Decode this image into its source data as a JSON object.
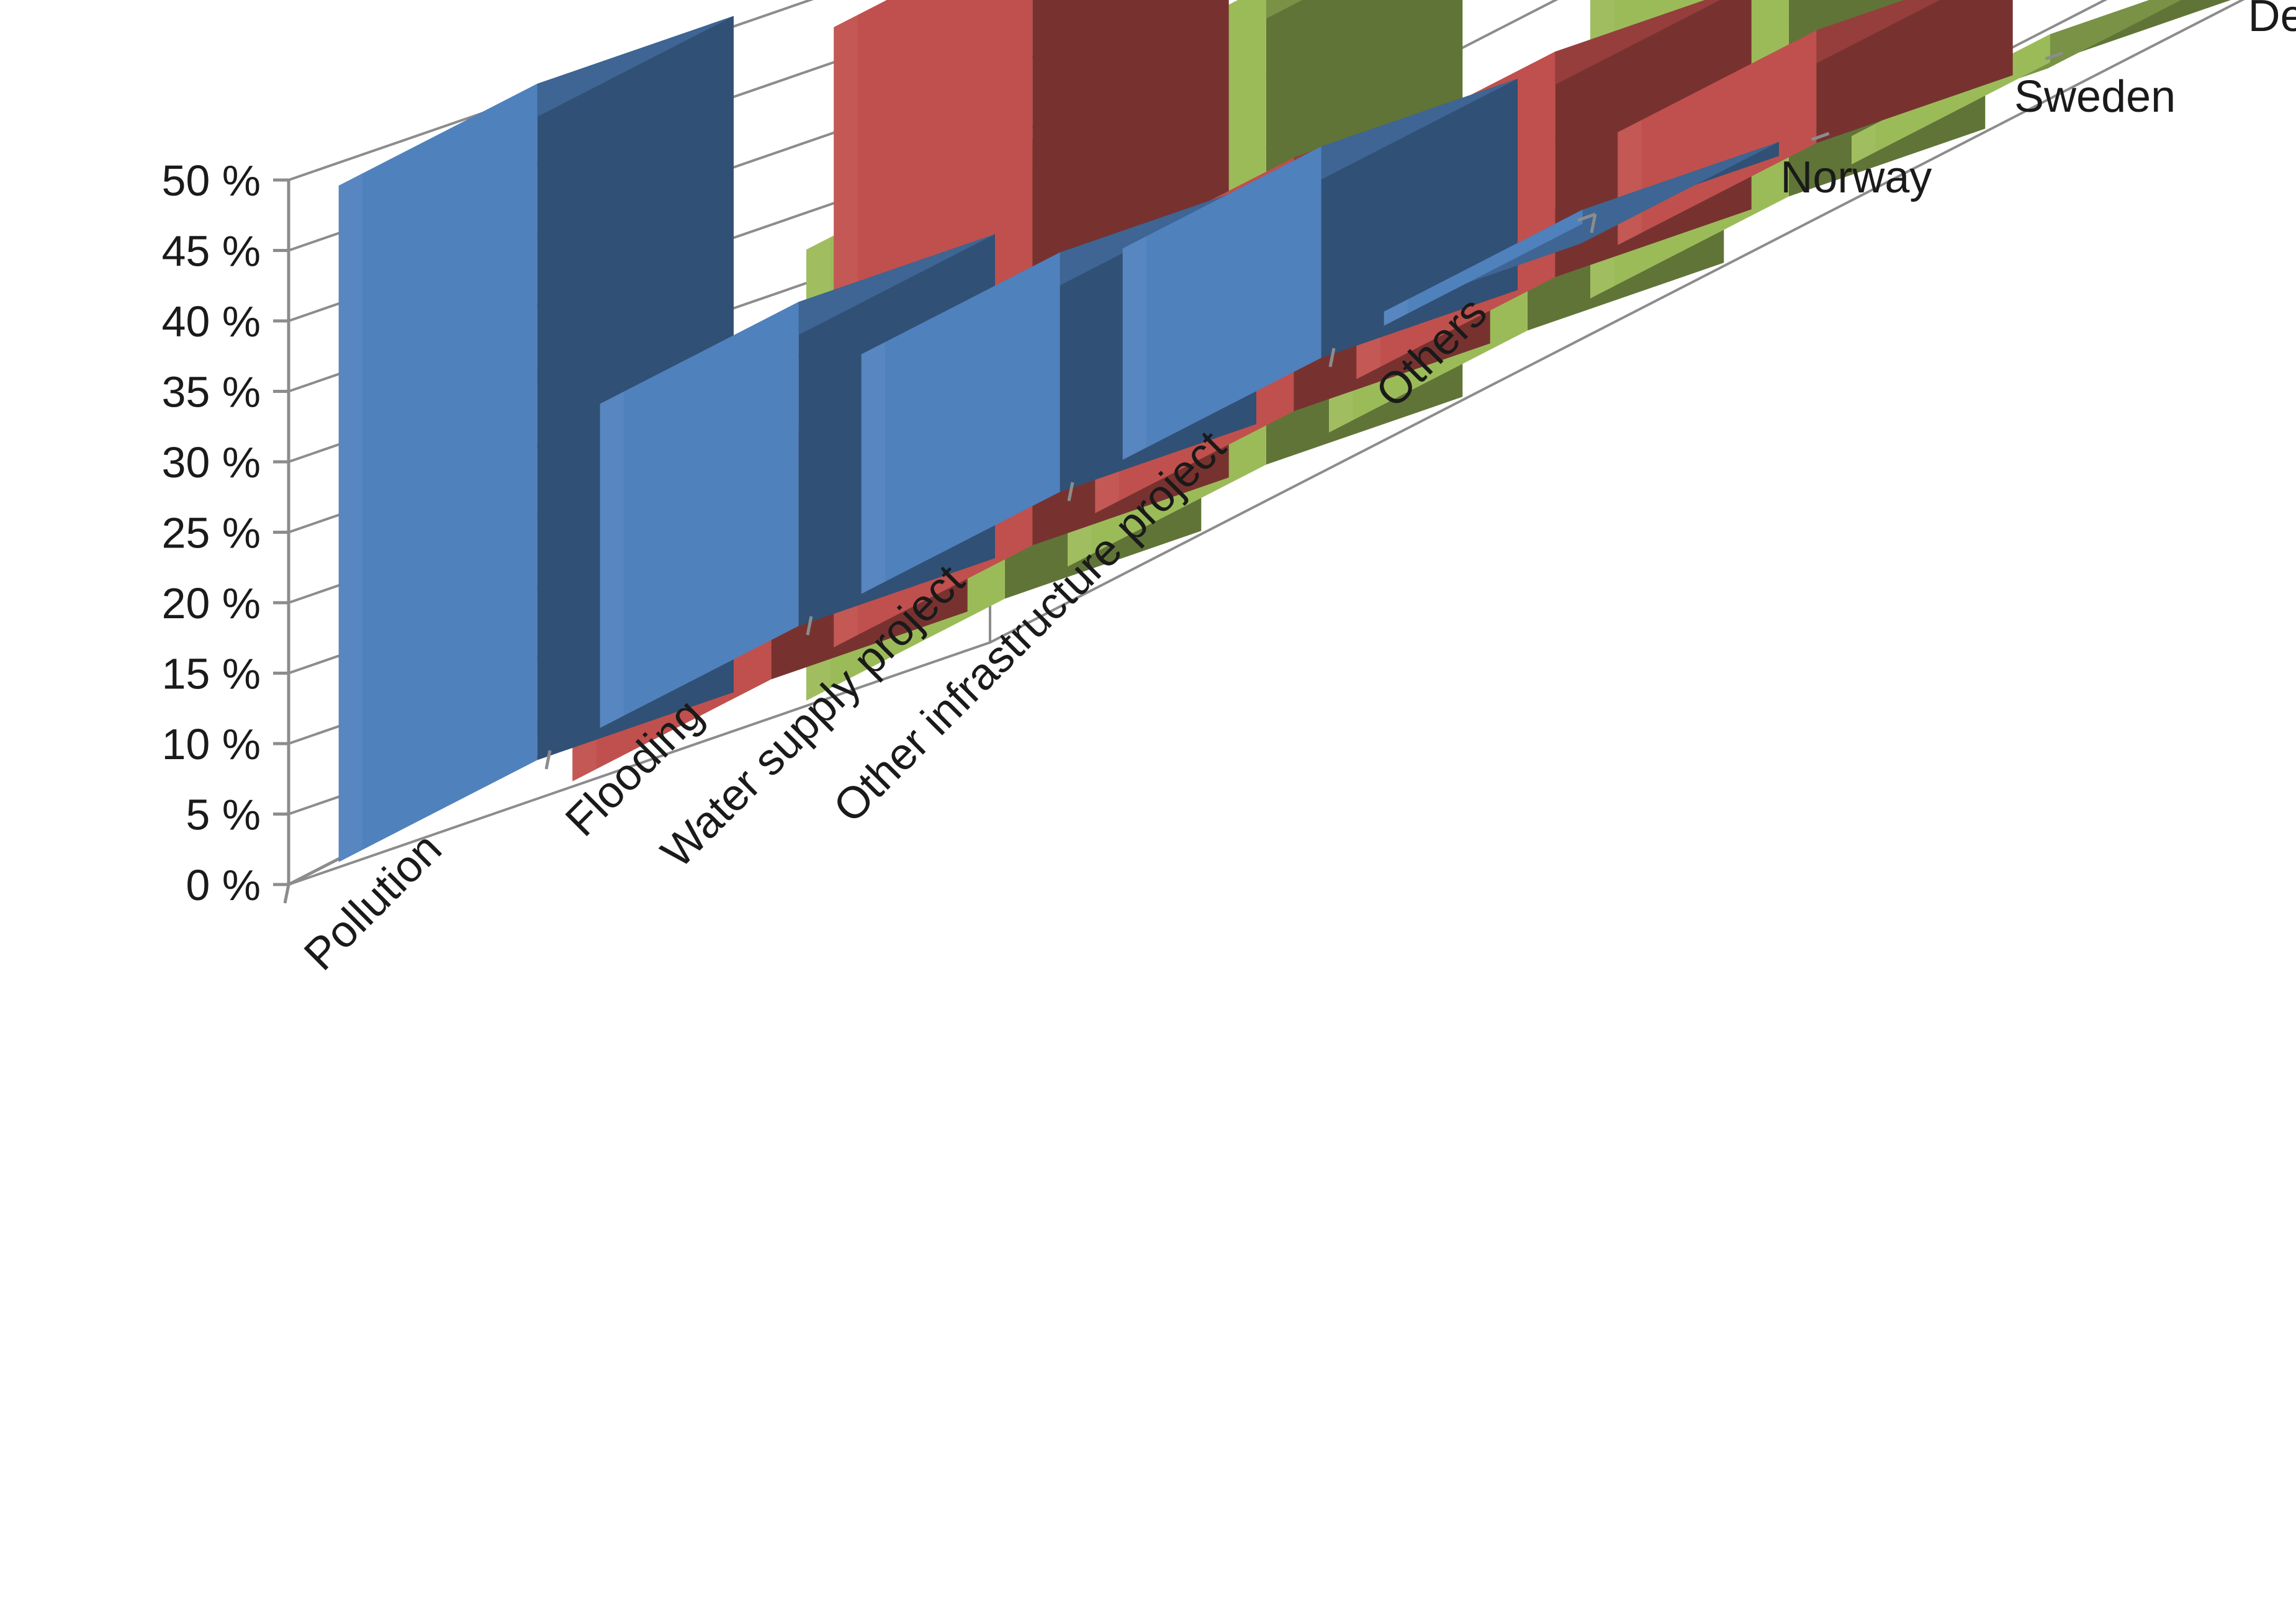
{
  "chart_data": {
    "type": "bar",
    "title": "",
    "xlabel": "",
    "ylabel": "",
    "ylim": [
      0,
      50
    ],
    "yticks": [
      "0 %",
      "5 %",
      "10 %",
      "15 %",
      "20 %",
      "25 %",
      "30 %",
      "35 %",
      "40 %",
      "45 %",
      "50 %"
    ],
    "categories": [
      "Pollution",
      "Flooding",
      "Water supply project",
      "Other infrastructure project",
      "Others"
    ],
    "series": [
      {
        "name": "Norway",
        "values": [
          48,
          23,
          17,
          15,
          1
        ],
        "color": "#4f81bd"
      },
      {
        "name": "Sweden",
        "values": [
          17,
          44,
          18,
          16,
          8
        ],
        "color": "#c0504d"
      },
      {
        "name": "Denmark",
        "values": [
          32,
          34,
          8,
          25,
          2
        ],
        "color": "#9bbb59"
      }
    ],
    "grid": true,
    "projection": "3d-clustered-column",
    "legend_position": "depth-axis-right"
  }
}
